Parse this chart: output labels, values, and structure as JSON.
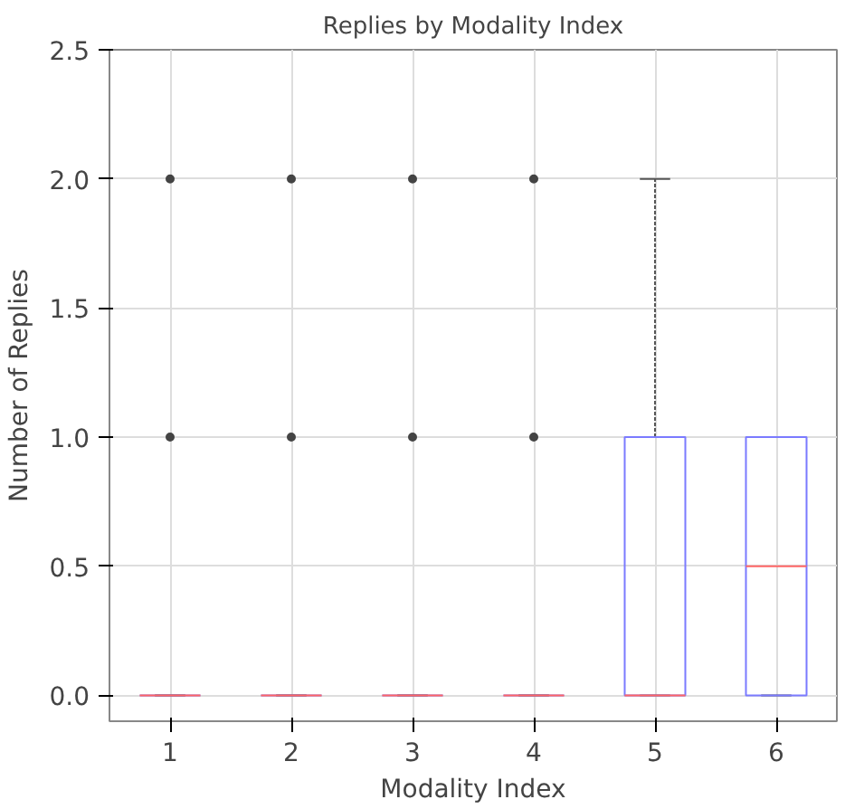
{
  "chart_data": {
    "type": "box",
    "title": "Replies by Modality Index",
    "xlabel": "Modality Index",
    "ylabel": "Number of Replies",
    "categories": [
      "1",
      "2",
      "3",
      "4",
      "5",
      "6"
    ],
    "series": [
      {
        "color": "#7b7bff",
        "boxes": [
          {
            "low": 0,
            "q1": 0,
            "median": 0,
            "q3": 0,
            "high": 0,
            "outliers": [
              1,
              2
            ]
          },
          {
            "low": 0,
            "q1": 0,
            "median": 0,
            "q3": 0,
            "high": 0,
            "outliers": [
              1,
              2
            ]
          },
          {
            "low": 0,
            "q1": 0,
            "median": 0,
            "q3": 0,
            "high": 0,
            "outliers": [
              1,
              2
            ]
          },
          {
            "low": 0,
            "q1": 0,
            "median": 0,
            "q3": 0,
            "high": 0,
            "outliers": [
              1,
              2
            ]
          },
          {
            "low": 0,
            "q1": 0,
            "median": 0,
            "q3": 1,
            "high": 2
          },
          {
            "low": 0,
            "q1": 0,
            "median": 0.5,
            "q3": 1,
            "high": 1
          }
        ]
      }
    ],
    "ylim": [
      -0.1,
      2.5
    ],
    "yticks": [
      {
        "value": 0,
        "label": "0.0"
      },
      {
        "value": 0.5,
        "label": "0.5"
      },
      {
        "value": 1,
        "label": "1.0"
      },
      {
        "value": 1.5,
        "label": "1.5"
      },
      {
        "value": 2,
        "label": "2.0"
      },
      {
        "value": 2.5,
        "label": "2.5"
      }
    ],
    "grid": true
  }
}
